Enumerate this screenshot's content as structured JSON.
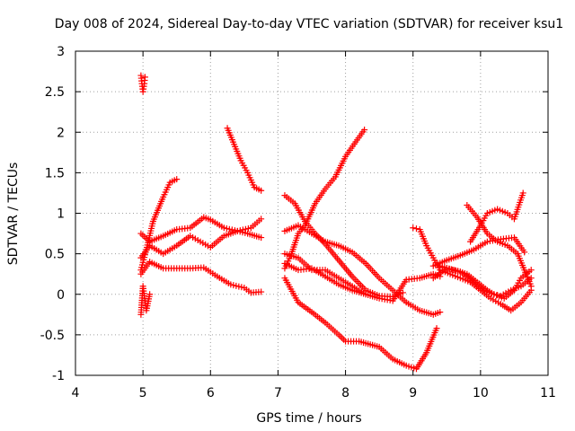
{
  "chart_data": {
    "type": "scatter",
    "title": "Day 008 of 2024, Sidereal Day-to-day VTEC variation (SDTVAR) for receiver ksu1",
    "xlabel": "GPS time / hours",
    "ylabel": "SDTVAR / TECUs",
    "xlim": [
      4,
      11
    ],
    "ylim": [
      -1,
      3
    ],
    "xticks": [
      4,
      5,
      6,
      7,
      8,
      9,
      10,
      11
    ],
    "yticks": [
      -1,
      -0.5,
      0,
      0.5,
      1,
      1.5,
      2,
      2.5,
      3
    ],
    "xtick_labels": [
      "4",
      "5",
      "6",
      "7",
      "8",
      "9",
      "10",
      "11"
    ],
    "ytick_labels": [
      "-1",
      "-0.5",
      "0",
      "0.5",
      "1",
      "1.5",
      "2",
      "2.5",
      "3"
    ],
    "grid": true,
    "marker": "+",
    "color": "#ff0000",
    "series": [
      {
        "name": "s1",
        "x": [
          4.97,
          5.0,
          5.02,
          5.03
        ],
        "y": [
          2.7,
          2.5,
          2.6,
          2.68
        ]
      },
      {
        "name": "s2",
        "x": [
          4.97,
          5.05,
          5.15,
          5.3,
          5.4,
          5.5
        ],
        "y": [
          0.3,
          0.55,
          0.9,
          1.2,
          1.38,
          1.42
        ]
      },
      {
        "name": "s3",
        "x": [
          4.97,
          5.1,
          5.3,
          5.5,
          5.7,
          5.9,
          6.0,
          6.2,
          6.4,
          6.6,
          6.75
        ],
        "y": [
          0.75,
          0.65,
          0.72,
          0.8,
          0.82,
          0.95,
          0.92,
          0.82,
          0.78,
          0.82,
          0.93
        ]
      },
      {
        "name": "s4",
        "x": [
          4.97,
          5.1,
          5.3,
          5.5,
          5.7,
          5.85,
          6.0,
          6.2,
          6.4,
          6.55,
          6.75
        ],
        "y": [
          0.45,
          0.6,
          0.5,
          0.6,
          0.72,
          0.65,
          0.58,
          0.72,
          0.78,
          0.75,
          0.7
        ]
      },
      {
        "name": "s5",
        "x": [
          4.97,
          5.1,
          5.3,
          5.5,
          5.7,
          5.9,
          6.1,
          6.3,
          6.5,
          6.6,
          6.75
        ],
        "y": [
          0.25,
          0.4,
          0.32,
          0.32,
          0.32,
          0.33,
          0.22,
          0.12,
          0.08,
          0.02,
          0.03
        ]
      },
      {
        "name": "s6",
        "x": [
          4.97,
          5.0,
          5.05,
          5.1
        ],
        "y": [
          -0.25,
          0.1,
          -0.2,
          0.0
        ]
      },
      {
        "name": "s7",
        "x": [
          6.25,
          6.35,
          6.45,
          6.55,
          6.65,
          6.75
        ],
        "y": [
          2.05,
          1.85,
          1.65,
          1.5,
          1.32,
          1.28
        ]
      },
      {
        "name": "s8",
        "x": [
          7.1,
          7.2,
          7.3,
          7.4,
          7.55,
          7.7,
          7.85,
          8.0,
          8.15,
          8.28
        ],
        "y": [
          0.32,
          0.5,
          0.75,
          0.85,
          1.12,
          1.3,
          1.45,
          1.7,
          1.88,
          2.03
        ]
      },
      {
        "name": "s9",
        "x": [
          7.1,
          7.25,
          7.4,
          7.55,
          7.7,
          7.9,
          8.1,
          8.3,
          8.5,
          8.7,
          8.85
        ],
        "y": [
          1.22,
          1.12,
          0.9,
          0.75,
          0.62,
          0.42,
          0.22,
          0.05,
          -0.02,
          -0.03,
          0.02
        ]
      },
      {
        "name": "s10",
        "x": [
          7.1,
          7.3,
          7.5,
          7.7,
          7.9,
          8.1,
          8.3,
          8.5,
          8.7,
          8.9,
          9.1,
          9.3,
          9.4
        ],
        "y": [
          0.38,
          0.3,
          0.32,
          0.22,
          0.12,
          0.05,
          0.0,
          -0.05,
          -0.08,
          0.18,
          0.2,
          0.25,
          0.22
        ]
      },
      {
        "name": "s11",
        "x": [
          7.1,
          7.3,
          7.5,
          7.7,
          7.9,
          8.0,
          8.2,
          8.5,
          8.7,
          8.9,
          9.05,
          9.2,
          9.35
        ],
        "y": [
          0.2,
          -0.1,
          -0.22,
          -0.35,
          -0.5,
          -0.58,
          -0.58,
          -0.65,
          -0.8,
          -0.88,
          -0.92,
          -0.72,
          -0.42
        ]
      },
      {
        "name": "s12",
        "x": [
          7.1,
          7.3,
          7.5,
          7.7,
          7.9,
          8.1,
          8.3,
          8.5,
          8.7,
          8.9,
          9.1,
          9.3,
          9.4
        ],
        "y": [
          0.78,
          0.85,
          0.75,
          0.65,
          0.6,
          0.52,
          0.38,
          0.2,
          0.05,
          -0.1,
          -0.2,
          -0.25,
          -0.22
        ]
      },
      {
        "name": "s13",
        "x": [
          7.1,
          7.3,
          7.5,
          7.7,
          7.9,
          8.1,
          8.3
        ],
        "y": [
          0.5,
          0.45,
          0.3,
          0.3,
          0.2,
          0.1,
          0.0
        ]
      },
      {
        "name": "s14",
        "x": [
          9.0,
          9.1,
          9.2,
          9.3,
          9.4,
          9.55,
          9.7,
          9.85,
          10.0,
          10.15,
          10.3,
          10.45,
          10.6,
          10.75
        ],
        "y": [
          0.82,
          0.8,
          0.6,
          0.45,
          0.3,
          0.25,
          0.2,
          0.15,
          0.05,
          -0.05,
          -0.12,
          -0.2,
          -0.1,
          0.05
        ]
      },
      {
        "name": "s15",
        "x": [
          9.3,
          9.5,
          9.7,
          9.9,
          10.1,
          10.3,
          10.5,
          10.65
        ],
        "y": [
          0.35,
          0.42,
          0.48,
          0.55,
          0.65,
          0.68,
          0.7,
          0.52
        ]
      },
      {
        "name": "s16",
        "x": [
          9.8,
          9.95,
          10.1,
          10.25,
          10.4,
          10.55,
          10.65,
          10.75
        ],
        "y": [
          1.1,
          0.95,
          0.75,
          0.65,
          0.6,
          0.5,
          0.3,
          0.1
        ]
      },
      {
        "name": "s17",
        "x": [
          9.85,
          10.0,
          10.1,
          10.25,
          10.4,
          10.5,
          10.63
        ],
        "y": [
          0.65,
          0.85,
          1.0,
          1.05,
          1.0,
          0.93,
          1.25
        ]
      },
      {
        "name": "s18",
        "x": [
          9.3,
          9.5,
          9.7,
          9.9,
          10.05,
          10.2,
          10.35,
          10.5,
          10.6,
          10.75
        ],
        "y": [
          0.2,
          0.32,
          0.28,
          0.15,
          0.05,
          0.0,
          -0.05,
          0.05,
          0.2,
          0.3
        ]
      },
      {
        "name": "s19",
        "x": [
          9.4,
          9.6,
          9.8,
          9.95,
          10.1,
          10.2,
          10.3,
          10.45,
          10.6,
          10.75
        ],
        "y": [
          0.35,
          0.3,
          0.25,
          0.15,
          0.05,
          0.0,
          -0.02,
          0.05,
          0.1,
          0.2
        ]
      }
    ]
  }
}
